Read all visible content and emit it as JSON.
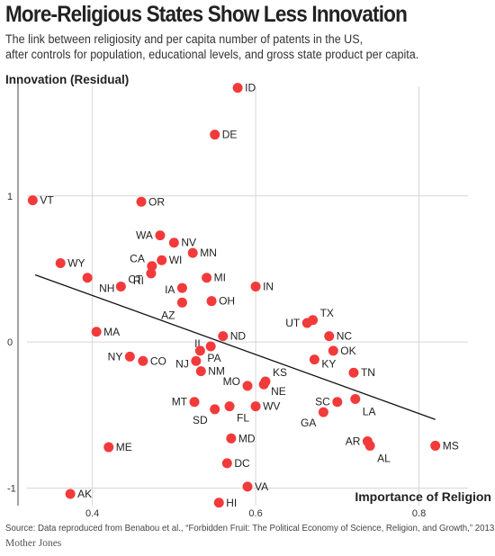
{
  "header": {
    "title": "More-Religious States Show Less Innovation",
    "subtitle_line1": "The link between religiosity and per capita number of patents in the US,",
    "subtitle_line2": "after controls for population, educational levels, and gross state product per capita."
  },
  "footer": {
    "source": "Source: Data reproduced from Benabou et al., “Forbidden Fruit: The Political Economy of Science, Religion, and Growth,” 2013",
    "brand": "Mother Jones"
  },
  "colors": {
    "point": "#f23a3a",
    "trendline": "#111111",
    "grid": "#d6d6d6",
    "text": "#222222"
  },
  "chart_data": {
    "type": "scatter",
    "xlabel": "Importance of Religion",
    "ylabel": "Innovation (Residual)",
    "xlim": [
      0.32,
      0.86
    ],
    "ylim": [
      -1.12,
      1.75
    ],
    "x_ticks": [
      0.4,
      0.6,
      0.8
    ],
    "x_tick_labels": [
      "0.4",
      "0.6",
      "0.8"
    ],
    "y_ticks": [
      -1,
      0,
      1
    ],
    "y_tick_labels": [
      "-1",
      "0",
      "1"
    ],
    "grid": true,
    "trendline": {
      "x": [
        0.33,
        0.82
      ],
      "y": [
        0.46,
        -0.53
      ]
    },
    "points": [
      {
        "label": "ID",
        "x": 0.578,
        "y": 1.74
      },
      {
        "label": "DE",
        "x": 0.55,
        "y": 1.42
      },
      {
        "label": "VT",
        "x": 0.327,
        "y": 0.97
      },
      {
        "label": "OR",
        "x": 0.46,
        "y": 0.96
      },
      {
        "label": "WA",
        "x": 0.483,
        "y": 0.73
      },
      {
        "label": "NV",
        "x": 0.5,
        "y": 0.68
      },
      {
        "label": "MN",
        "x": 0.523,
        "y": 0.61
      },
      {
        "label": "CA",
        "x": 0.473,
        "y": 0.52
      },
      {
        "label": "WI",
        "x": 0.485,
        "y": 0.56
      },
      {
        "label": "RI",
        "x": 0.472,
        "y": 0.47
      },
      {
        "label": "WY",
        "x": 0.361,
        "y": 0.54
      },
      {
        "label": "NH",
        "x": 0.394,
        "y": 0.44
      },
      {
        "label": "CT",
        "x": 0.435,
        "y": 0.38
      },
      {
        "label": "MI",
        "x": 0.54,
        "y": 0.44
      },
      {
        "label": "IA",
        "x": 0.51,
        "y": 0.37
      },
      {
        "label": "IN",
        "x": 0.6,
        "y": 0.38
      },
      {
        "label": "OH",
        "x": 0.546,
        "y": 0.28
      },
      {
        "label": "AZ",
        "x": 0.51,
        "y": 0.27
      },
      {
        "label": "TX",
        "x": 0.67,
        "y": 0.15
      },
      {
        "label": "UT",
        "x": 0.663,
        "y": 0.13
      },
      {
        "label": "MA",
        "x": 0.405,
        "y": 0.07
      },
      {
        "label": "ND",
        "x": 0.56,
        "y": 0.04
      },
      {
        "label": "NC",
        "x": 0.69,
        "y": 0.04
      },
      {
        "label": "IL",
        "x": 0.545,
        "y": -0.03
      },
      {
        "label": "PA",
        "x": 0.532,
        "y": -0.06
      },
      {
        "label": "OK",
        "x": 0.695,
        "y": -0.06
      },
      {
        "label": "NY",
        "x": 0.446,
        "y": -0.1
      },
      {
        "label": "CO",
        "x": 0.462,
        "y": -0.13
      },
      {
        "label": "NJ",
        "x": 0.527,
        "y": -0.13
      },
      {
        "label": "KY",
        "x": 0.672,
        "y": -0.12
      },
      {
        "label": "NM",
        "x": 0.533,
        "y": -0.2
      },
      {
        "label": "TN",
        "x": 0.72,
        "y": -0.21
      },
      {
        "label": "KS",
        "x": 0.612,
        "y": -0.27
      },
      {
        "label": "MO",
        "x": 0.59,
        "y": -0.3
      },
      {
        "label": "NE",
        "x": 0.61,
        "y": -0.29
      },
      {
        "label": "MT",
        "x": 0.525,
        "y": -0.41
      },
      {
        "label": "SD",
        "x": 0.55,
        "y": -0.46
      },
      {
        "label": "FL",
        "x": 0.568,
        "y": -0.44
      },
      {
        "label": "WV",
        "x": 0.6,
        "y": -0.44
      },
      {
        "label": "SC",
        "x": 0.7,
        "y": -0.41
      },
      {
        "label": "LA",
        "x": 0.722,
        "y": -0.39
      },
      {
        "label": "GA",
        "x": 0.683,
        "y": -0.48
      },
      {
        "label": "MD",
        "x": 0.57,
        "y": -0.66
      },
      {
        "label": "AR",
        "x": 0.737,
        "y": -0.68
      },
      {
        "label": "AL",
        "x": 0.74,
        "y": -0.71
      },
      {
        "label": "MS",
        "x": 0.82,
        "y": -0.71
      },
      {
        "label": "ME",
        "x": 0.42,
        "y": -0.72
      },
      {
        "label": "DC",
        "x": 0.565,
        "y": -0.83
      },
      {
        "label": "VA",
        "x": 0.59,
        "y": -0.99
      },
      {
        "label": "AK",
        "x": 0.373,
        "y": -1.04
      },
      {
        "label": "HI",
        "x": 0.555,
        "y": -1.1
      }
    ]
  }
}
